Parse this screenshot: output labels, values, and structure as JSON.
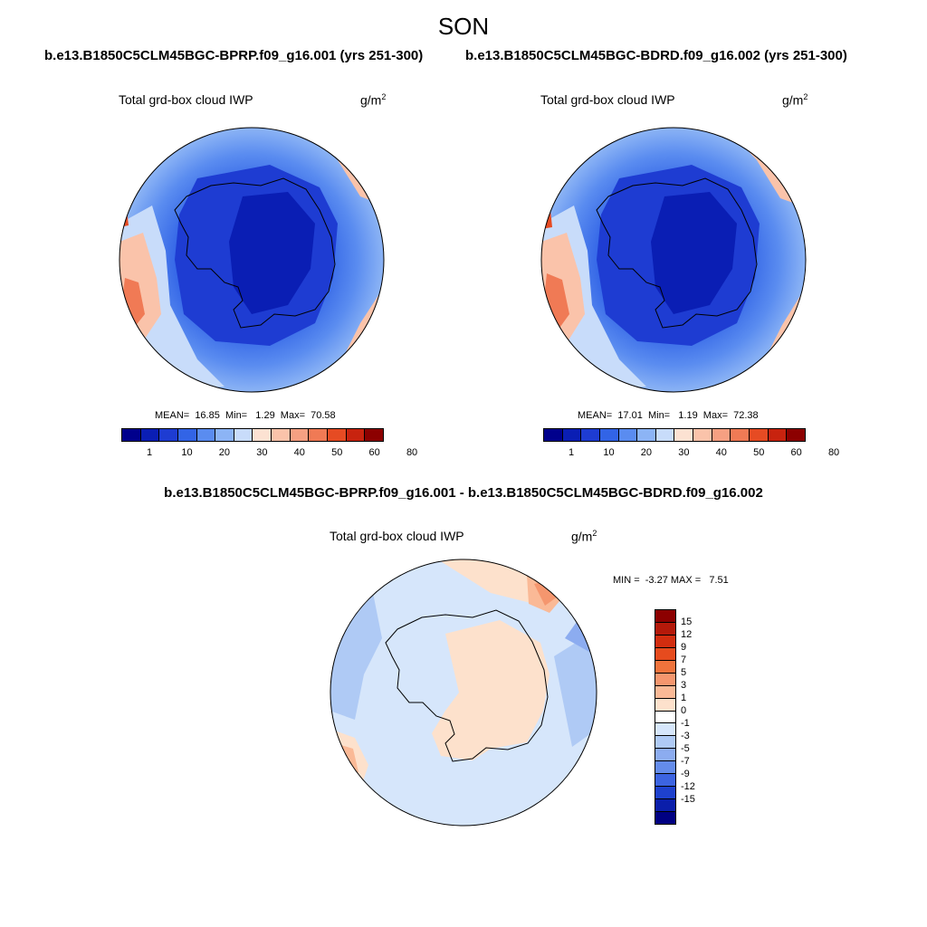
{
  "figure": {
    "season": "SON",
    "case1": "b.e13.B1850C5CLM45BGC-BPRP.f09_g16.001 (yrs 251-300)",
    "case2": "b.e13.B1850C5CLM45BGC-BDRD.f09_g16.002 (yrs 251-300)",
    "diff_title": "b.e13.B1850C5CLM45BGC-BPRP.f09_g16.001 - b.e13.B1850C5CLM45BGC-BDRD.f09_g16.002"
  },
  "panels": [
    {
      "variable": "Total grd-box cloud IWP",
      "units_base": "g/m",
      "units_exp": "2",
      "stats": "MEAN=  16.85  Min=   1.29  Max=  70.58",
      "mean": 16.85,
      "min": 1.29,
      "max": 70.58
    },
    {
      "variable": "Total grd-box cloud IWP",
      "units_base": "g/m",
      "units_exp": "2",
      "stats": "MEAN=  17.01  Min=   1.19  Max=  72.38",
      "mean": 17.01,
      "min": 1.19,
      "max": 72.38
    },
    {
      "variable": "Total grd-box cloud IWP",
      "units_base": "g/m",
      "units_exp": "2",
      "stats": "MIN =  -3.27 MAX =   7.51",
      "min": -3.27,
      "max": 7.51
    }
  ],
  "abs_colorbar": {
    "colors": [
      "#00008c",
      "#0a1eb4",
      "#1e3cd2",
      "#3264e6",
      "#5a8cf0",
      "#8cb4f5",
      "#c8dcfa",
      "#fce2d2",
      "#fac3aa",
      "#f5a082",
      "#f07a55",
      "#e64b23",
      "#c8230f",
      "#8c0000"
    ],
    "ticks": [
      "1",
      "10",
      "20",
      "30",
      "40",
      "50",
      "60",
      "80"
    ]
  },
  "diff_colorbar": {
    "colors": [
      "#8c0000",
      "#b4190a",
      "#d22d0f",
      "#e64b1e",
      "#f0733c",
      "#f5966e",
      "#fab996",
      "#fde1cc",
      "#ffffff",
      "#d6e6fb",
      "#afcaf5",
      "#8cacf0",
      "#648ceb",
      "#3c64e1",
      "#1e41cd",
      "#0a1eaa",
      "#000082"
    ],
    "ticks": [
      "15",
      "12",
      "9",
      "7",
      "5",
      "3",
      "1",
      "0",
      "-1",
      "-3",
      "-5",
      "-7",
      "-9",
      "-12",
      "-15"
    ]
  }
}
